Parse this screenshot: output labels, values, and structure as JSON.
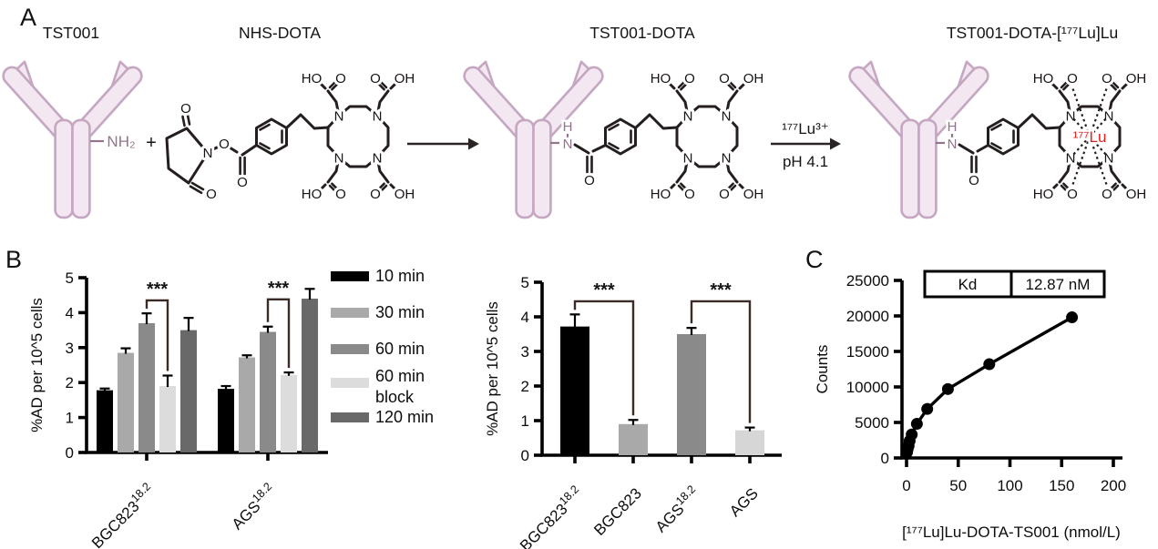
{
  "panels": {
    "a": "A",
    "b": "B",
    "c": "C"
  },
  "panelA": {
    "titles": [
      "TST001",
      "NHS-DOTA",
      "TST001-DOTA",
      "TST001-DOTA-[¹⁷⁷Lu]Lu"
    ],
    "nh2": "NH₂",
    "plus": "+",
    "amide_h": "H",
    "amide_n": "N",
    "atom_o": "O",
    "atom_n": "N",
    "atom_ho": "HO",
    "atom_oh": "OH",
    "arrow_lu_top": "¹⁷⁷Lu³⁺",
    "arrow_lu_bottom": "pH 4.1",
    "lu_center": "¹⁷⁷Lu",
    "colors": {
      "antibody_fill": "#f3e8f2",
      "antibody_stroke": "#c5a7c1",
      "amine_purple": "#94738c",
      "bond_black": "#241e1e",
      "lutetium_red": "#e31e1f"
    }
  },
  "chart_data": [
    {
      "id": "cell-uptake-time-course",
      "type": "bar",
      "title": "",
      "xlabel": "",
      "ylabel": "%AD per 10^5 cells",
      "ylim": [
        0,
        5
      ],
      "yticks": [
        0,
        1,
        2,
        3,
        4,
        5
      ],
      "categories": [
        "BGC823^18.2",
        "AGS^18.2"
      ],
      "series": [
        {
          "name": "10 min",
          "color": "#000000",
          "values": [
            1.78,
            1.82
          ],
          "errors": [
            0.05,
            0.08
          ]
        },
        {
          "name": "30 min",
          "color": "#a9a9a9",
          "values": [
            2.85,
            2.72
          ],
          "errors": [
            0.13,
            0.06
          ]
        },
        {
          "name": "60 min",
          "color": "#8a8a8a",
          "values": [
            3.7,
            3.45
          ],
          "errors": [
            0.28,
            0.15
          ]
        },
        {
          "name": "60 min block",
          "legend_lines": [
            "60 min",
            "block"
          ],
          "color": "#dcdcdc",
          "values": [
            1.9,
            2.22
          ],
          "errors": [
            0.3,
            0.07
          ]
        },
        {
          "name": "120 min",
          "color": "#696969",
          "values": [
            3.5,
            4.4
          ],
          "errors": [
            0.35,
            0.28
          ]
        }
      ],
      "significance": [
        {
          "group": 0,
          "series_a": 2,
          "series_b": 3,
          "bar_y": 4.35,
          "label": "***"
        },
        {
          "group": 1,
          "series_a": 2,
          "series_b": 3,
          "bar_y": 4.38,
          "label": "***"
        }
      ],
      "legend_position": "right",
      "grid": false
    },
    {
      "id": "blocking-specificity",
      "type": "bar",
      "title": "",
      "xlabel": "",
      "ylabel": "%AD per 10^5 cells",
      "ylim": [
        0,
        5
      ],
      "yticks": [
        0,
        1,
        2,
        3,
        4,
        5
      ],
      "categories": [
        "BGC823^18.2",
        "BGC823",
        "AGS^18.2",
        "AGS"
      ],
      "values": [
        3.72,
        0.9,
        3.5,
        0.72
      ],
      "errors": [
        0.35,
        0.12,
        0.18,
        0.08
      ],
      "bar_colors": [
        "#000000",
        "#a9a9a9",
        "#8a8a8a",
        "#d6d6d6"
      ],
      "significance": [
        {
          "bar_a": 0,
          "bar_b": 1,
          "bar_y": 4.45,
          "label": "***"
        },
        {
          "bar_a": 2,
          "bar_b": 3,
          "bar_y": 4.45,
          "label": "***"
        }
      ],
      "legend_position": "none",
      "grid": false
    },
    {
      "id": "saturation-binding",
      "type": "scatter",
      "title": "",
      "xlabel": "[¹⁷⁷Lu]Lu-DOTA-TS001 (nmol/L)",
      "ylabel": "Counts",
      "xlim": [
        0,
        200
      ],
      "xticks": [
        0,
        50,
        100,
        150,
        200
      ],
      "ylim": [
        0,
        25000
      ],
      "yticks": [
        0,
        5000,
        10000,
        15000,
        20000,
        25000
      ],
      "kd": {
        "label": "Kd",
        "value": "12.87 nM"
      },
      "x": [
        0.5,
        1,
        2,
        3,
        5,
        10,
        20,
        40,
        80,
        160
      ],
      "y": [
        800,
        1200,
        1700,
        2400,
        3300,
        4800,
        6900,
        9700,
        13200,
        19800
      ],
      "line": true,
      "grid": false
    }
  ]
}
